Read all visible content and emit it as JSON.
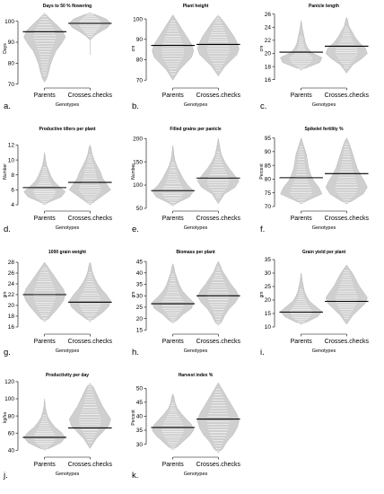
{
  "chart_data": [
    {
      "id": "a",
      "type": "beanplot",
      "letter": "a.",
      "title": "Days to 50 % flowering",
      "ylabel": "Days",
      "xlabel": "Genotypes",
      "categories": [
        "Parents",
        "Crosses.checks"
      ],
      "ylim": [
        69,
        105
      ],
      "yticks": [
        70,
        80,
        90,
        100
      ],
      "groups": [
        {
          "median": 95,
          "min": 71,
          "max": 104,
          "shape": [
            0.1,
            0.2,
            0.28,
            0.4,
            0.55,
            0.8,
            1.0,
            0.85,
            0.5,
            0.15
          ]
        },
        {
          "median": 99,
          "min": 84,
          "max": 104,
          "shape": [
            0,
            0,
            0,
            0,
            0.2,
            0.5,
            0.85,
            1.0,
            0.8,
            0.3
          ]
        }
      ]
    },
    {
      "id": "b",
      "type": "beanplot",
      "letter": "b.",
      "title": "Plant height",
      "ylabel": "cm",
      "xlabel": "Genotypes",
      "categories": [
        "Parents",
        "Crosses.checks"
      ],
      "ylim": [
        67,
        104
      ],
      "yticks": [
        70,
        80,
        90,
        100
      ],
      "groups": [
        {
          "median": 87,
          "min": 70,
          "max": 102,
          "shape": [
            0.1,
            0.3,
            0.6,
            0.9,
            1.0,
            0.9,
            0.7,
            0.5,
            0.3,
            0.1
          ]
        },
        {
          "median": 87.5,
          "min": 72,
          "max": 102,
          "shape": [
            0.1,
            0.3,
            0.6,
            0.9,
            1.0,
            0.9,
            0.75,
            0.55,
            0.35,
            0.12
          ]
        }
      ]
    },
    {
      "id": "c",
      "type": "beanplot",
      "letter": "c.",
      "title": "Panicle length",
      "ylabel": "cm",
      "xlabel": "Genotypes",
      "categories": [
        "Parents",
        "Crosses.checks"
      ],
      "ylim": [
        15,
        26.5
      ],
      "yticks": [
        16,
        18,
        20,
        22,
        24,
        26
      ],
      "groups": [
        {
          "median": 20.2,
          "min": 17.5,
          "max": 25,
          "shape": [
            0.3,
            0.9,
            1.0,
            0.5,
            0.3,
            0.2,
            0.15,
            0.1,
            0.05,
            0.02
          ]
        },
        {
          "median": 21.1,
          "min": 17,
          "max": 25.5,
          "shape": [
            0.1,
            0.3,
            0.7,
            1.0,
            0.9,
            0.6,
            0.4,
            0.25,
            0.1,
            0.05
          ]
        }
      ]
    },
    {
      "id": "d",
      "type": "beanplot",
      "letter": "d.",
      "title": "Productive tillers per plant",
      "ylabel": "Number",
      "xlabel": "Genotypes",
      "categories": [
        "Parents",
        "Crosses.checks"
      ],
      "ylim": [
        3.4,
        13.5
      ],
      "yticks": [
        4,
        6,
        8,
        10,
        12
      ],
      "groups": [
        {
          "median": 6.3,
          "min": 4,
          "max": 11,
          "shape": [
            0.2,
            0.8,
            1.0,
            0.7,
            0.45,
            0.3,
            0.2,
            0.1,
            0.05,
            0.02
          ]
        },
        {
          "median": 7.0,
          "min": 4,
          "max": 12,
          "shape": [
            0.2,
            0.6,
            1.0,
            0.8,
            0.6,
            0.5,
            0.35,
            0.2,
            0.1,
            0.05
          ]
        }
      ]
    },
    {
      "id": "e",
      "type": "beanplot",
      "letter": "e.",
      "title": "Filled grains per panicle",
      "ylabel": "Number",
      "xlabel": "Genotypes",
      "categories": [
        "Parents",
        "Crosses.checks"
      ],
      "ylim": [
        48,
        210
      ],
      "yticks": [
        50,
        100,
        150,
        200
      ],
      "groups": [
        {
          "median": 88,
          "min": 55,
          "max": 185,
          "shape": [
            0.2,
            0.8,
            1.0,
            0.7,
            0.5,
            0.35,
            0.2,
            0.1,
            0.05,
            0.02
          ]
        },
        {
          "median": 115,
          "min": 60,
          "max": 200,
          "shape": [
            0.1,
            0.3,
            0.8,
            1.0,
            0.75,
            0.5,
            0.3,
            0.15,
            0.08,
            0.03
          ]
        }
      ]
    },
    {
      "id": "f",
      "type": "beanplot",
      "letter": "f.",
      "title": "Spikelet fertility %",
      "ylabel": "Percent",
      "xlabel": "Genotypes",
      "categories": [
        "Parents",
        "Crosses.checks"
      ],
      "ylim": [
        69,
        96.5
      ],
      "yticks": [
        70,
        75,
        80,
        85,
        90,
        95
      ],
      "groups": [
        {
          "median": 80.5,
          "min": 71,
          "max": 95,
          "shape": [
            0.3,
            1.0,
            0.85,
            0.6,
            0.45,
            0.35,
            0.3,
            0.25,
            0.15,
            0.05
          ]
        },
        {
          "median": 82,
          "min": 71,
          "max": 95,
          "shape": [
            0.3,
            0.8,
            1.0,
            0.85,
            0.65,
            0.5,
            0.4,
            0.3,
            0.2,
            0.08
          ]
        }
      ]
    },
    {
      "id": "g",
      "type": "beanplot",
      "letter": "g.",
      "title": "1000 grain weight",
      "ylabel": "gm",
      "xlabel": "Genotypes",
      "categories": [
        "Parents",
        "Crosses.checks"
      ],
      "ylim": [
        15,
        29
      ],
      "yticks": [
        16,
        18,
        20,
        22,
        24,
        26,
        28
      ],
      "groups": [
        {
          "median": 22,
          "min": 17,
          "max": 28,
          "shape": [
            0.2,
            0.45,
            0.7,
            0.9,
            1.0,
            0.9,
            0.7,
            0.5,
            0.3,
            0.1
          ]
        },
        {
          "median": 20.6,
          "min": 17,
          "max": 28,
          "shape": [
            0.2,
            0.6,
            0.9,
            1.0,
            0.8,
            0.55,
            0.35,
            0.2,
            0.1,
            0.05
          ]
        }
      ]
    },
    {
      "id": "h",
      "type": "beanplot",
      "letter": "h.",
      "title": "Biomass per plant",
      "ylabel": "gm",
      "xlabel": "Genotypes",
      "categories": [
        "Parents",
        "Crosses.checks"
      ],
      "ylim": [
        14,
        47
      ],
      "yticks": [
        15,
        20,
        25,
        30,
        35,
        40,
        45
      ],
      "groups": [
        {
          "median": 26.5,
          "min": 18,
          "max": 44,
          "shape": [
            0.2,
            0.5,
            0.9,
            1.0,
            0.7,
            0.45,
            0.3,
            0.2,
            0.1,
            0.05
          ]
        },
        {
          "median": 30,
          "min": 17,
          "max": 45,
          "shape": [
            0.15,
            0.3,
            0.5,
            0.8,
            1.0,
            0.85,
            0.6,
            0.4,
            0.2,
            0.08
          ]
        }
      ]
    },
    {
      "id": "i",
      "type": "beanplot",
      "letter": "i.",
      "title": "Grain yield per plant",
      "ylabel": "gm",
      "xlabel": "Genotypes",
      "categories": [
        "Parents",
        "Crosses.checks"
      ],
      "ylim": [
        8,
        36
      ],
      "yticks": [
        10,
        15,
        20,
        25,
        30,
        35
      ],
      "groups": [
        {
          "median": 15.5,
          "min": 11,
          "max": 30,
          "shape": [
            0.3,
            0.8,
            1.0,
            0.7,
            0.4,
            0.25,
            0.15,
            0.1,
            0.05,
            0.02
          ]
        },
        {
          "median": 19.5,
          "min": 11,
          "max": 33,
          "shape": [
            0.1,
            0.3,
            0.6,
            0.9,
            1.0,
            0.8,
            0.6,
            0.45,
            0.3,
            0.1
          ]
        }
      ]
    },
    {
      "id": "j",
      "type": "beanplot",
      "letter": "j.",
      "title": "Productivity per day",
      "ylabel": "kg/ha",
      "xlabel": "Genotypes",
      "categories": [
        "Parents",
        "Crosses.checks"
      ],
      "ylim": [
        34,
        122
      ],
      "yticks": [
        40,
        60,
        80,
        100,
        120
      ],
      "groups": [
        {
          "median": 55,
          "min": 40,
          "max": 100,
          "shape": [
            0.3,
            0.8,
            1.0,
            0.8,
            0.5,
            0.3,
            0.15,
            0.08,
            0.03,
            0.01
          ]
        },
        {
          "median": 66,
          "min": 42,
          "max": 118,
          "shape": [
            0.1,
            0.3,
            0.6,
            0.9,
            1.0,
            0.8,
            0.6,
            0.45,
            0.3,
            0.15
          ]
        }
      ]
    },
    {
      "id": "k",
      "type": "beanplot",
      "letter": "k.",
      "title": "Harvest index %",
      "ylabel": "Percent",
      "xlabel": "Genotypes",
      "categories": [
        "Parents",
        "Crosses.checks"
      ],
      "ylim": [
        26,
        53
      ],
      "yticks": [
        30,
        35,
        40,
        45,
        50
      ],
      "groups": [
        {
          "median": 36,
          "min": 28,
          "max": 48,
          "shape": [
            0.2,
            0.5,
            0.8,
            1.0,
            0.9,
            0.65,
            0.4,
            0.2,
            0.1,
            0.05
          ]
        },
        {
          "median": 39,
          "min": 27,
          "max": 52,
          "shape": [
            0.2,
            0.4,
            0.7,
            0.9,
            1.0,
            0.9,
            0.7,
            0.5,
            0.3,
            0.1
          ]
        }
      ]
    }
  ],
  "colors": {
    "bean": "#cfcfcf",
    "bean_stroke": "#b4b4b4",
    "strip": "#ffffff",
    "median": "#000000",
    "axis": "#000000"
  }
}
